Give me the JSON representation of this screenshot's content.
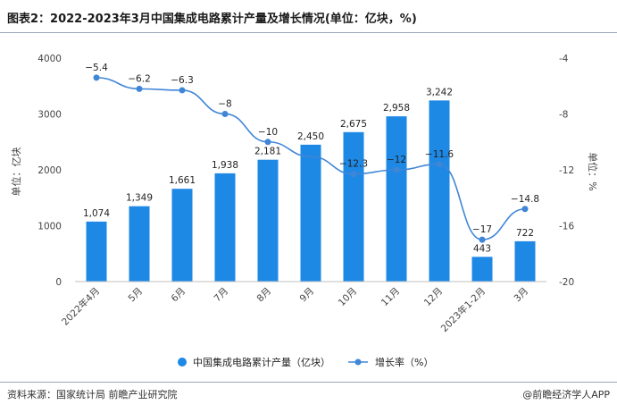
{
  "title": "图表2：2022-2023年3月中国集成电路累计产量及增长情况(单位：亿块，%)",
  "source": "资料来源：国家统计局 前瞻产业研究院",
  "brand": "@前瞻经济学人APP",
  "chart_data": {
    "type": "bar",
    "categories": [
      "2022年4月",
      "5月",
      "6月",
      "7月",
      "8月",
      "9月",
      "10月",
      "11月",
      "12月",
      "2023年1-2月",
      "3月"
    ],
    "series": [
      {
        "name": "中国集成电路累计产量（亿块）",
        "type": "bar",
        "axis": "left",
        "color": "#1e88e5",
        "values": [
          1074,
          1349,
          1661,
          1938,
          2181,
          2450,
          2675,
          2958,
          3242,
          443,
          722
        ],
        "labels": [
          "1,074",
          "1,349",
          "1,661",
          "1,938",
          "2,181",
          "2,450",
          "2,675",
          "2,958",
          "3,242",
          "443",
          "722"
        ]
      },
      {
        "name": "增长率（%）",
        "type": "line",
        "axis": "right",
        "color": "#3f86d6",
        "values": [
          -5.4,
          -6.2,
          -6.3,
          -8,
          -10,
          null,
          -12.3,
          -12,
          -11.6,
          -17,
          -14.8
        ],
        "labels": [
          "−5.4",
          "−6.2",
          "−6.3",
          "−8",
          "−10",
          "",
          "−12.3",
          "−12",
          "−11.6",
          "−17",
          "−14.8"
        ]
      }
    ],
    "ylabel": "单位：亿块",
    "ylabel_right": "单位：%",
    "ylim": [
      0,
      4000
    ],
    "yticks": [
      "0",
      "1000",
      "2000",
      "3000",
      "4000"
    ],
    "ylim_right": [
      -20,
      -4
    ],
    "yticks_right": [
      "-20",
      "-16",
      "-12",
      "-8",
      "-4"
    ],
    "legend_position": "bottom",
    "grid": false
  }
}
